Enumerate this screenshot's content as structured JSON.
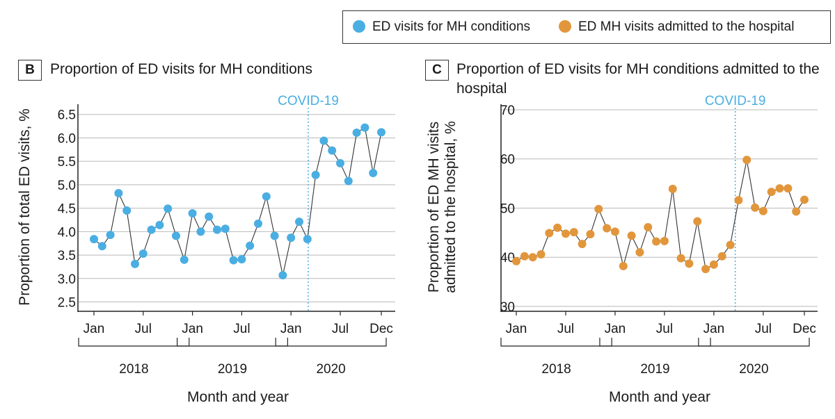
{
  "legend": {
    "items": [
      {
        "label": "ED visits for MH conditions",
        "color": "#4aaee2"
      },
      {
        "label": "ED MH visits admitted to the hospital",
        "color": "#e2963c"
      }
    ]
  },
  "chart_data": [
    {
      "type": "line",
      "panel": "B",
      "title": "Proportion of ED visits for MH conditions",
      "xlabel": "Month and year",
      "ylabel": "Proportion of total ED visits, %",
      "ylim": [
        2.3,
        6.6
      ],
      "yticks": [
        2.5,
        3.0,
        3.5,
        4.0,
        4.5,
        5.0,
        5.5,
        6.0,
        6.5
      ],
      "ytick_labels": [
        "2.5",
        "3.0",
        "3.5",
        "4.0",
        "4.5",
        "5.0",
        "5.5",
        "6.0",
        "6.5"
      ],
      "xticks": [
        {
          "month": 1,
          "label": "Jan"
        },
        {
          "month": 7,
          "label": "Jul"
        },
        {
          "month": 13,
          "label": "Jan"
        },
        {
          "month": 19,
          "label": "Jul"
        },
        {
          "month": 25,
          "label": "Jan"
        },
        {
          "month": 31,
          "label": "Jul"
        },
        {
          "month": 36,
          "label": "Dec"
        }
      ],
      "year_groups": [
        {
          "label": "2018",
          "start": 1,
          "end": 12
        },
        {
          "label": "2019",
          "start": 13,
          "end": 24
        },
        {
          "label": "2020",
          "start": 25,
          "end": 36
        }
      ],
      "annotation": {
        "label": "COVID-19",
        "month": 27.1
      },
      "series": [
        {
          "name": "ED visits for MH conditions",
          "color": "#4aaee2",
          "values": [
            3.84,
            3.69,
            3.93,
            4.82,
            4.45,
            3.31,
            3.53,
            4.04,
            4.14,
            4.49,
            3.91,
            3.4,
            4.39,
            4.0,
            4.32,
            4.04,
            4.06,
            3.39,
            3.41,
            3.7,
            4.17,
            4.75,
            3.91,
            3.07,
            3.87,
            4.21,
            3.84,
            5.21,
            5.94,
            5.73,
            5.46,
            5.08,
            6.11,
            6.22,
            5.25,
            6.12
          ]
        }
      ]
    },
    {
      "type": "line",
      "panel": "C",
      "title": "Proportion of ED visits for MH conditions admitted to the hospital",
      "xlabel": "Month and year",
      "ylabel": "Proportion of ED MH visits admitted to the hospital, %",
      "ylabel_lines": [
        "Proportion of ED MH visits",
        "admitted to the hospital, %"
      ],
      "ylim": [
        29,
        70
      ],
      "yticks": [
        30,
        40,
        50,
        60,
        70
      ],
      "ytick_labels": [
        "30",
        "40",
        "50",
        "60",
        "70"
      ],
      "xticks": [
        {
          "month": 1,
          "label": "Jan"
        },
        {
          "month": 7,
          "label": "Jul"
        },
        {
          "month": 13,
          "label": "Jan"
        },
        {
          "month": 19,
          "label": "Jul"
        },
        {
          "month": 25,
          "label": "Jan"
        },
        {
          "month": 31,
          "label": "Jul"
        },
        {
          "month": 36,
          "label": "Dec"
        }
      ],
      "year_groups": [
        {
          "label": "2018",
          "start": 1,
          "end": 12
        },
        {
          "label": "2019",
          "start": 13,
          "end": 24
        },
        {
          "label": "2020",
          "start": 25,
          "end": 36
        }
      ],
      "annotation": {
        "label": "COVID-19",
        "month": 27.6
      },
      "series": [
        {
          "name": "ED MH visits admitted to the hospital",
          "color": "#e2963c",
          "values": [
            39.2,
            40.2,
            40.0,
            40.6,
            44.9,
            46.0,
            44.8,
            45.1,
            42.7,
            44.7,
            49.8,
            45.9,
            45.2,
            38.2,
            44.4,
            41.0,
            46.1,
            43.2,
            43.3,
            53.9,
            39.8,
            38.7,
            47.3,
            37.6,
            38.5,
            40.2,
            42.5,
            51.6,
            59.8,
            50.1,
            49.4,
            53.3,
            54.0,
            54.0,
            49.3,
            51.7
          ]
        }
      ]
    }
  ]
}
